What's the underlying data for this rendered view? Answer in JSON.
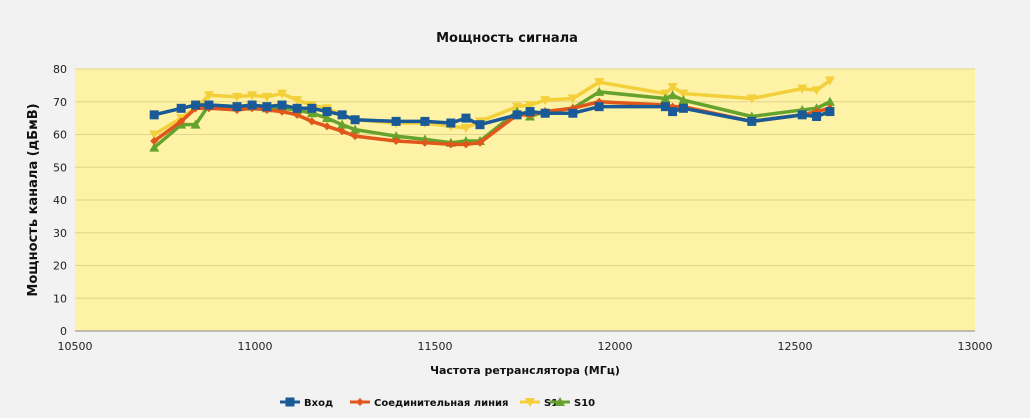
{
  "chart_data": {
    "type": "line",
    "title": "Мощность сигнала",
    "xlabel": "Частота ретранслятора (МГц)",
    "ylabel": "Мощность канала (дБмВ)",
    "xlim": [
      10500,
      13000
    ],
    "ylim": [
      0,
      80
    ],
    "xticks": [
      10500,
      11000,
      11500,
      12000,
      12500,
      13000
    ],
    "yticks": [
      0,
      10,
      20,
      30,
      40,
      50,
      60,
      70,
      80
    ],
    "grid": true,
    "legend_position": "bottom",
    "x": [
      10720,
      10795,
      10835,
      10872,
      10950,
      10992,
      11033,
      11075,
      11117,
      11158,
      11200,
      11242,
      11278,
      11392,
      11472,
      11544,
      11586,
      11625,
      11728,
      11764,
      11806,
      11883,
      11956,
      12140,
      12160,
      12190,
      12380,
      12520,
      12560,
      12597
    ],
    "series": [
      {
        "name": "Вход",
        "color": "#1a5a96",
        "marker": "square",
        "values": [
          66,
          68,
          69,
          69,
          68.5,
          69,
          68.5,
          69,
          68,
          68,
          67,
          66,
          64.5,
          64,
          64,
          63.5,
          65,
          63,
          66,
          67,
          66.5,
          66.5,
          68.5,
          68.5,
          67,
          68,
          64,
          66,
          65.5,
          67
        ]
      },
      {
        "name": "Соединительная линия",
        "color": "#e0561b",
        "marker": "diamond",
        "values": [
          58,
          64,
          68,
          68,
          67.5,
          68,
          67.5,
          67,
          66,
          64,
          62.5,
          61,
          59.5,
          58,
          57.5,
          57,
          57,
          57.5,
          66,
          66,
          67,
          68,
          70,
          69,
          68.5,
          68.5,
          64,
          66,
          67,
          68
        ]
      },
      {
        "name": "S1",
        "color": "#f3cf3a",
        "marker": "triangle-down",
        "values": [
          60,
          65,
          68,
          72,
          71.5,
          72,
          71.5,
          72.5,
          70.5,
          69,
          68,
          66,
          64.5,
          63.5,
          63.5,
          62.5,
          62,
          64,
          68.5,
          69,
          70.5,
          71,
          76,
          72.5,
          74.5,
          72.5,
          71,
          74,
          73.5,
          76.5
        ]
      },
      {
        "name": "S10",
        "color": "#66a22e",
        "marker": "triangle",
        "values": [
          56,
          63,
          63,
          69,
          68.5,
          68.5,
          68,
          68,
          67.5,
          66.5,
          65,
          63,
          61.5,
          59.5,
          58.5,
          57.5,
          58,
          58,
          67,
          65.5,
          67,
          68,
          73,
          71,
          72,
          70.5,
          65.5,
          67.5,
          68,
          70
        ]
      }
    ]
  }
}
